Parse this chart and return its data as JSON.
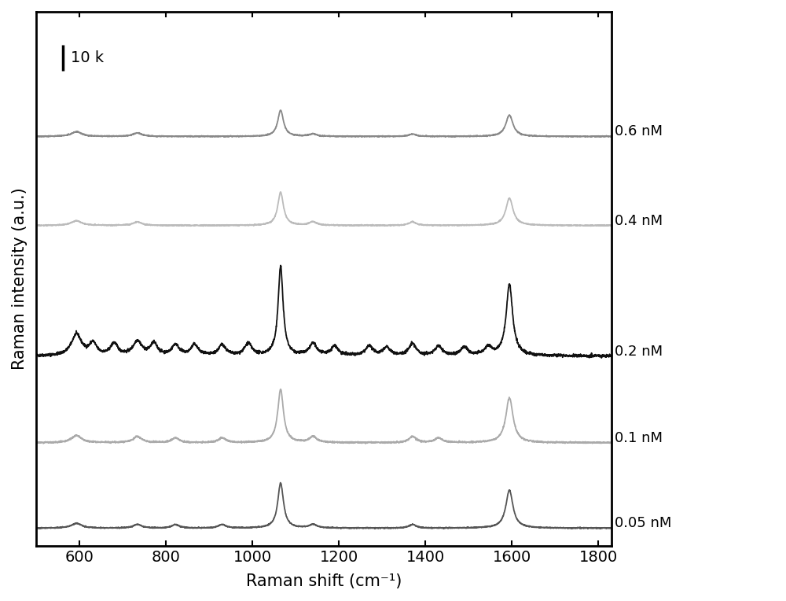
{
  "xlabel": "Raman shift (cm⁻¹)",
  "ylabel": "Raman intensity (a.u.)",
  "xlim": [
    500,
    1830
  ],
  "xticks": [
    600,
    800,
    1000,
    1200,
    1400,
    1600,
    1800
  ],
  "series": [
    {
      "label": "0.6 nM",
      "color": "#888888"
    },
    {
      "label": "0.4 nM",
      "color": "#bbbbbb"
    },
    {
      "label": "0.2 nM",
      "color": "#111111"
    },
    {
      "label": "0.1 nM",
      "color": "#aaaaaa"
    },
    {
      "label": "0.05 nM",
      "color": "#555555"
    }
  ],
  "offsets": [
    3.3,
    2.55,
    1.45,
    0.72,
    0.0
  ],
  "scale_bar_label": "10 k",
  "background_color": "#ffffff",
  "linewidth": 1.3
}
